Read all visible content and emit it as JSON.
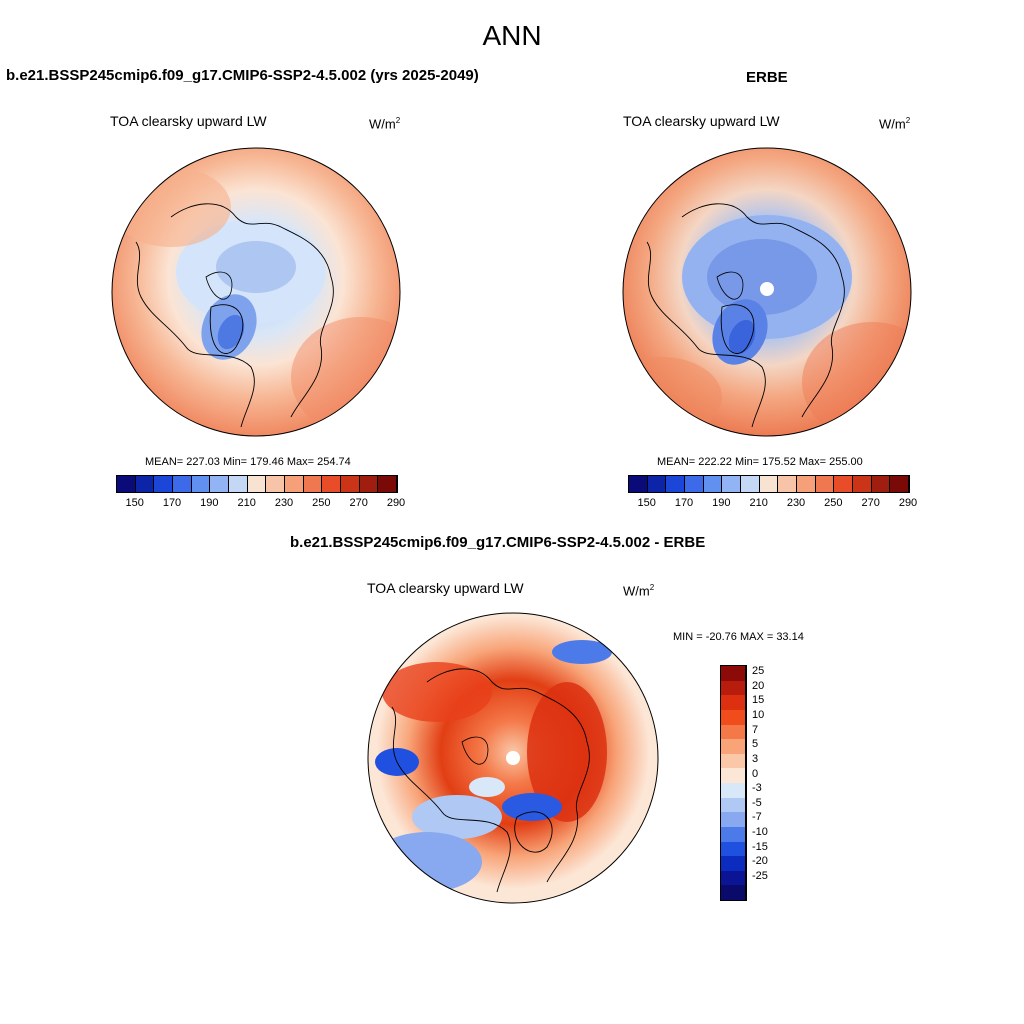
{
  "title": "ANN",
  "panel_a": {
    "header": "b.e21.BSSP245cmip6.f09_g17.CMIP6-SSP2-4.5.002 (yrs 2025-2049)",
    "variable": "TOA clearsky upward LW",
    "units_base": "W/m",
    "units_exp": "2",
    "stats": "MEAN= 227.03  Min= 179.46  Max= 254.74"
  },
  "panel_b": {
    "header": "ERBE",
    "variable": "TOA clearsky upward LW",
    "units_base": "W/m",
    "units_exp": "2",
    "stats": "MEAN= 222.22  Min= 175.52  Max= 255.00"
  },
  "panel_diff": {
    "header": "b.e21.BSSP245cmip6.f09_g17.CMIP6-SSP2-4.5.002 - ERBE",
    "variable": "TOA clearsky upward LW",
    "units_base": "W/m",
    "units_exp": "2",
    "stats": "MIN = -20.76 MAX =  33.14"
  },
  "colorbar_abs": {
    "labels": [
      "150",
      "170",
      "190",
      "210",
      "230",
      "250",
      "270",
      "290"
    ],
    "colors": [
      "#0a0a78",
      "#0b24a8",
      "#1c46d8",
      "#3d6ae8",
      "#6290f0",
      "#92b4f4",
      "#c4d8f6",
      "#f8e2d2",
      "#f8c4a8",
      "#f6a07a",
      "#f07850",
      "#e84c28",
      "#cc3418",
      "#a01e10",
      "#7a0a08"
    ]
  },
  "colorbar_diff": {
    "labels": [
      "25",
      "20",
      "15",
      "10",
      "7",
      "5",
      "3",
      "0",
      "-3",
      "-5",
      "-7",
      "-10",
      "-15",
      "-20",
      "-25"
    ],
    "colors": [
      "#8c0a08",
      "#b81c0c",
      "#dc3010",
      "#f04c1c",
      "#f47848",
      "#f8a478",
      "#fac8a8",
      "#fce6d6",
      "#d8e8f8",
      "#b0c8f4",
      "#88a8f0",
      "#4c7ae8",
      "#2050e0",
      "#0c2cc0",
      "#0a1494",
      "#0a0a6a"
    ]
  }
}
